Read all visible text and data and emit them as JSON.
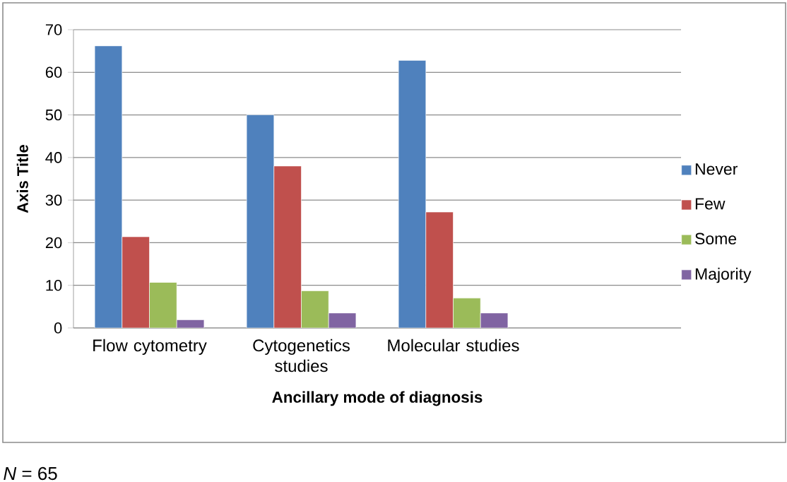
{
  "chart_data": {
    "type": "bar",
    "xlabel": "Ancillary mode of diagnosis",
    "ylabel": "Axis Title",
    "categories": [
      "Flow cytometry",
      "Cytogenetics studies",
      "Molecular studies",
      null
    ],
    "series": [
      {
        "name": "Never",
        "color": "#4f81bd",
        "values": [
          66.2,
          50,
          62.8,
          null
        ]
      },
      {
        "name": "Few",
        "color": "#c0504d",
        "values": [
          21.4,
          38,
          27.2,
          null
        ]
      },
      {
        "name": "Some",
        "color": "#9bbb59",
        "values": [
          10.7,
          8.7,
          7,
          null
        ]
      },
      {
        "name": "Majority",
        "color": "#8064a2",
        "values": [
          1.9,
          3.5,
          3.5,
          null
        ]
      }
    ],
    "ylim": [
      0,
      70
    ],
    "yticks": [
      0,
      10,
      20,
      30,
      40,
      50,
      60,
      70
    ],
    "grid": "y",
    "legend": "right",
    "annotations": [
      "*N* = 65"
    ]
  }
}
